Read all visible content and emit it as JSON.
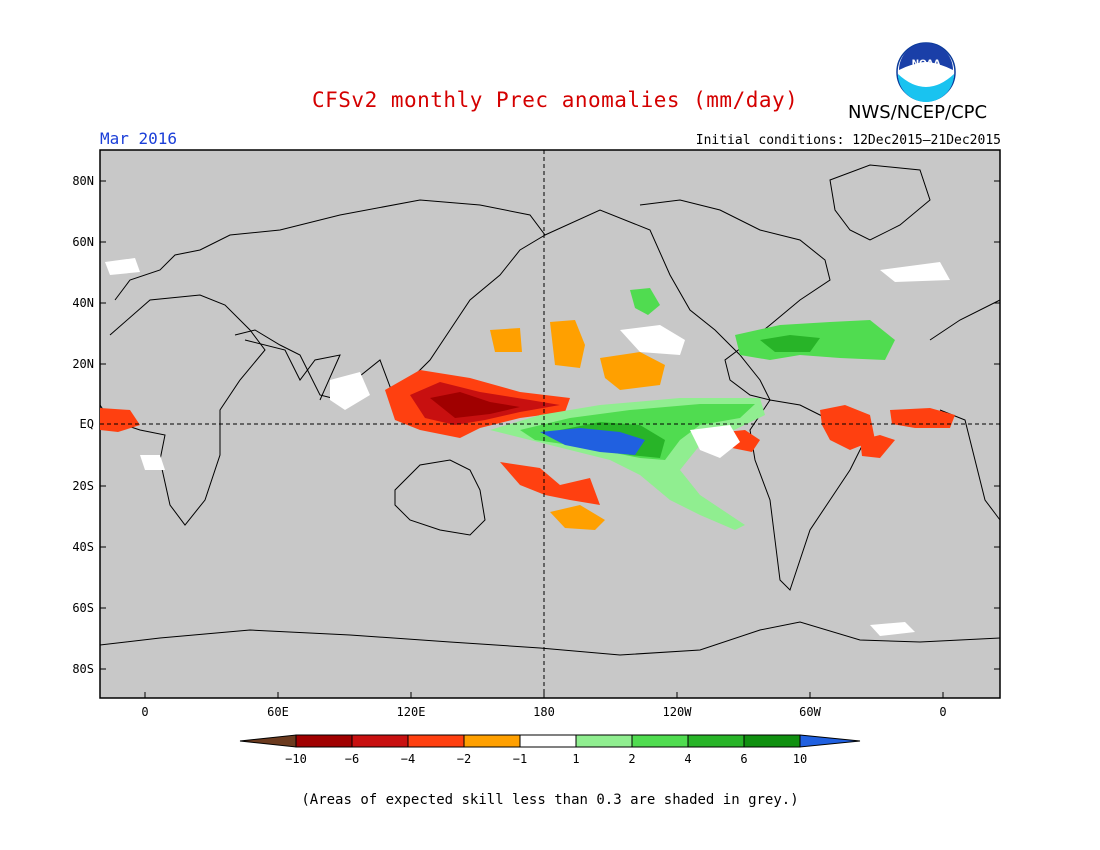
{
  "header": {
    "title": "CFSv2 monthly Prec anomalies (mm/day)",
    "organization": "NWS/NCEP/CPC",
    "logo_text": "NOAA",
    "period": "Mar 2016",
    "initial_conditions": "Initial conditions: 12Dec2015–21Dec2015"
  },
  "map": {
    "background_color": "#c8c8c8",
    "lat_labels": [
      "80N",
      "60N",
      "40N",
      "20N",
      "EQ",
      "20S",
      "40S",
      "60S",
      "80S"
    ],
    "lon_labels": [
      "0",
      "60E",
      "120E",
      "180",
      "120W",
      "60W",
      "0"
    ]
  },
  "colorbar": {
    "labels": [
      "−10",
      "−6",
      "−4",
      "−2",
      "−1",
      "1",
      "2",
      "4",
      "6",
      "10"
    ],
    "colors": {
      "below_-10": "#6b3a1e",
      "-10_to_-6": "#a00000",
      "-6_to_-4": "#c81010",
      "-4_to_-2": "#ff4010",
      "-2_to_-1": "#ffa000",
      "-1_to_1": "#ffffff",
      "1_to_2": "#90ee90",
      "2_to_4": "#50dc50",
      "4_to_6": "#28b428",
      "6_to_10": "#109010",
      "above_10": "#2060e0"
    }
  },
  "footnote": "(Areas of expected skill less than 0.3 are shaded in grey.)"
}
